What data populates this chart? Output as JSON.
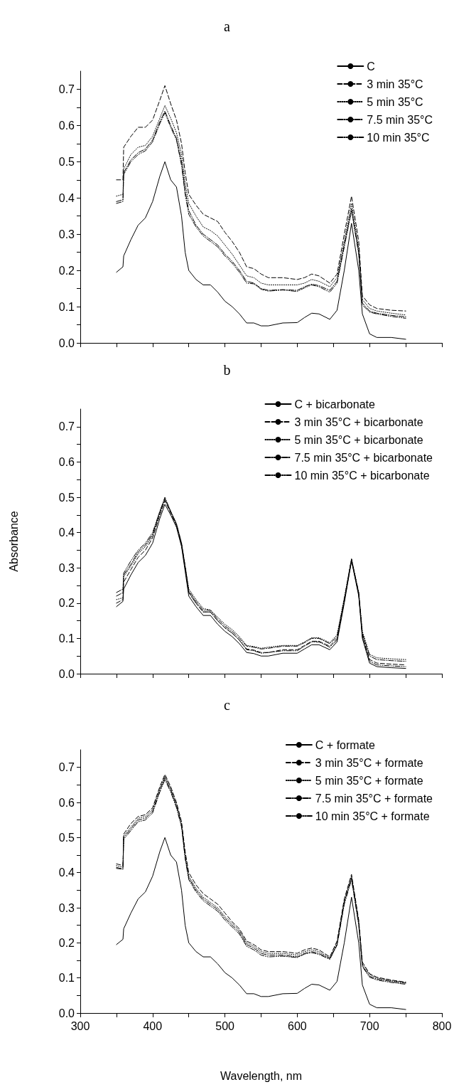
{
  "chart_data": [
    {
      "type": "line",
      "title": "a",
      "xlim": [
        300,
        800
      ],
      "ylim": [
        0,
        0.75
      ],
      "tick_labels": "y",
      "legend": "top right",
      "marker": "none",
      "xticks": [
        300,
        {
          "value": 350,
          "label": null
        },
        400,
        {
          "value": 450,
          "label": null
        },
        500,
        {
          "value": 550,
          "label": null
        },
        600,
        {
          "value": 650,
          "label": null
        },
        700,
        {
          "value": 750,
          "label": null
        },
        800
      ],
      "yticks": [
        {
          "value": 0,
          "label": "0.0"
        },
        {
          "value": 0.05,
          "label": null
        },
        {
          "value": 0.1,
          "label": "0.1"
        },
        {
          "value": 0.15,
          "label": null
        },
        {
          "value": 0.2,
          "label": "0.2"
        },
        {
          "value": 0.25,
          "label": null
        },
        {
          "value": 0.3,
          "label": "0.3"
        },
        {
          "value": 0.35,
          "label": null
        },
        {
          "value": 0.4,
          "label": "0.4"
        },
        {
          "value": 0.45,
          "label": null
        },
        {
          "value": 0.5,
          "label": "0.5"
        },
        {
          "value": 0.55,
          "label": null
        },
        {
          "value": 0.6,
          "label": "0.6"
        },
        {
          "value": 0.65,
          "label": null
        },
        {
          "value": 0.7,
          "label": "0.7"
        }
      ],
      "x": [
        350,
        359,
        360,
        370,
        380,
        390,
        400,
        410,
        417,
        425,
        433,
        440,
        445,
        450,
        460,
        470,
        480,
        490,
        500,
        510,
        520,
        530,
        540,
        550,
        560,
        580,
        600,
        610,
        620,
        630,
        645,
        655,
        665,
        675,
        685,
        690,
        700,
        710,
        730,
        750
      ],
      "series": [
        {
          "name": "C",
          "color": "#000000",
          "line_style": "solid",
          "values": [
            0.195,
            0.21,
            0.24,
            0.285,
            0.325,
            0.345,
            0.39,
            0.46,
            0.5,
            0.45,
            0.43,
            0.35,
            0.25,
            0.2,
            0.175,
            0.16,
            0.16,
            0.14,
            0.115,
            0.1,
            0.08,
            0.055,
            0.055,
            0.047,
            0.047,
            0.055,
            0.056,
            0.07,
            0.082,
            0.08,
            0.065,
            0.09,
            0.2,
            0.33,
            0.2,
            0.08,
            0.025,
            0.015,
            0.015,
            0.01
          ]
        },
        {
          "name": "3 min 35°C",
          "color": "#000000",
          "line_style": "dashed",
          "values": [
            0.45,
            0.45,
            0.54,
            0.57,
            0.595,
            0.595,
            0.615,
            0.67,
            0.71,
            0.66,
            0.615,
            0.55,
            0.47,
            0.41,
            0.38,
            0.355,
            0.345,
            0.335,
            0.305,
            0.28,
            0.25,
            0.21,
            0.205,
            0.19,
            0.18,
            0.18,
            0.175,
            0.18,
            0.19,
            0.185,
            0.165,
            0.19,
            0.3,
            0.405,
            0.28,
            0.13,
            0.105,
            0.095,
            0.09,
            0.088
          ]
        },
        {
          "name": "5 min 35°C",
          "color": "#000000",
          "line_style": "dotted",
          "values": [
            0.405,
            0.41,
            0.48,
            0.52,
            0.54,
            0.545,
            0.57,
            0.62,
            0.655,
            0.62,
            0.58,
            0.52,
            0.44,
            0.385,
            0.35,
            0.32,
            0.31,
            0.295,
            0.27,
            0.245,
            0.215,
            0.185,
            0.18,
            0.165,
            0.16,
            0.16,
            0.16,
            0.165,
            0.175,
            0.17,
            0.155,
            0.18,
            0.28,
            0.385,
            0.26,
            0.12,
            0.095,
            0.088,
            0.082,
            0.077
          ]
        },
        {
          "name": "7.5 min 35°C",
          "color": "#000000",
          "line_style": "dashdot",
          "values": [
            0.39,
            0.395,
            0.47,
            0.505,
            0.525,
            0.535,
            0.56,
            0.61,
            0.64,
            0.6,
            0.565,
            0.5,
            0.42,
            0.365,
            0.325,
            0.3,
            0.285,
            0.27,
            0.245,
            0.225,
            0.2,
            0.17,
            0.165,
            0.15,
            0.145,
            0.147,
            0.145,
            0.155,
            0.162,
            0.158,
            0.145,
            0.17,
            0.27,
            0.37,
            0.25,
            0.11,
            0.088,
            0.082,
            0.076,
            0.072
          ]
        },
        {
          "name": "10 min 35°C",
          "color": "#000000",
          "line_style": "dashdotdot",
          "values": [
            0.385,
            0.39,
            0.465,
            0.5,
            0.52,
            0.53,
            0.555,
            0.605,
            0.635,
            0.595,
            0.56,
            0.49,
            0.41,
            0.355,
            0.32,
            0.295,
            0.28,
            0.265,
            0.24,
            0.22,
            0.195,
            0.165,
            0.163,
            0.148,
            0.143,
            0.146,
            0.142,
            0.152,
            0.16,
            0.155,
            0.14,
            0.165,
            0.265,
            0.365,
            0.245,
            0.105,
            0.085,
            0.08,
            0.073,
            0.068
          ]
        }
      ]
    },
    {
      "type": "line",
      "title": "b",
      "ylabel": "Absorbance",
      "xlim": [
        300,
        800
      ],
      "ylim": [
        0,
        0.75
      ],
      "tick_labels": "y",
      "legend": "top right",
      "marker": "none",
      "xticks": [
        300,
        {
          "value": 350,
          "label": null
        },
        400,
        {
          "value": 450,
          "label": null
        },
        500,
        {
          "value": 550,
          "label": null
        },
        600,
        {
          "value": 650,
          "label": null
        },
        700,
        {
          "value": 750,
          "label": null
        },
        800
      ],
      "yticks": [
        {
          "value": 0,
          "label": "0.0"
        },
        {
          "value": 0.05,
          "label": null
        },
        {
          "value": 0.1,
          "label": "0.1"
        },
        {
          "value": 0.15,
          "label": null
        },
        {
          "value": 0.2,
          "label": "0.2"
        },
        {
          "value": 0.25,
          "label": null
        },
        {
          "value": 0.3,
          "label": "0.3"
        },
        {
          "value": 0.35,
          "label": null
        },
        {
          "value": 0.4,
          "label": "0.4"
        },
        {
          "value": 0.45,
          "label": null
        },
        {
          "value": 0.5,
          "label": "0.5"
        },
        {
          "value": 0.55,
          "label": null
        },
        {
          "value": 0.6,
          "label": "0.6"
        },
        {
          "value": 0.65,
          "label": null
        },
        {
          "value": 0.7,
          "label": "0.7"
        }
      ],
      "x": [
        350,
        359,
        360,
        370,
        380,
        390,
        400,
        410,
        417,
        425,
        433,
        440,
        445,
        450,
        460,
        470,
        480,
        490,
        500,
        510,
        520,
        530,
        540,
        550,
        560,
        580,
        600,
        610,
        620,
        630,
        645,
        655,
        665,
        675,
        685,
        690,
        700,
        710,
        730,
        750
      ],
      "series": [
        {
          "name": "C + bicarbonate",
          "color": "#000000",
          "line_style": "solid",
          "values": [
            0.19,
            0.205,
            0.24,
            0.28,
            0.315,
            0.335,
            0.37,
            0.44,
            0.48,
            0.45,
            0.415,
            0.36,
            0.29,
            0.22,
            0.19,
            0.165,
            0.165,
            0.14,
            0.12,
            0.105,
            0.085,
            0.06,
            0.057,
            0.05,
            0.05,
            0.058,
            0.058,
            0.07,
            0.082,
            0.082,
            0.068,
            0.09,
            0.2,
            0.32,
            0.22,
            0.1,
            0.03,
            0.02,
            0.017,
            0.015
          ]
        },
        {
          "name": "3 min 35°C + bicarbonate",
          "color": "#000000",
          "line_style": "dashed",
          "values": [
            0.2,
            0.21,
            0.26,
            0.295,
            0.33,
            0.35,
            0.385,
            0.45,
            0.49,
            0.455,
            0.42,
            0.365,
            0.3,
            0.23,
            0.2,
            0.175,
            0.175,
            0.15,
            0.13,
            0.115,
            0.095,
            0.07,
            0.067,
            0.06,
            0.06,
            0.068,
            0.068,
            0.08,
            0.092,
            0.092,
            0.078,
            0.1,
            0.21,
            0.325,
            0.225,
            0.11,
            0.04,
            0.03,
            0.027,
            0.025
          ]
        },
        {
          "name": "5 min 35°C + bicarbonate",
          "color": "#000000",
          "line_style": "dotted",
          "values": [
            0.21,
            0.215,
            0.275,
            0.305,
            0.34,
            0.36,
            0.39,
            0.455,
            0.495,
            0.46,
            0.425,
            0.37,
            0.305,
            0.24,
            0.21,
            0.185,
            0.18,
            0.16,
            0.14,
            0.125,
            0.105,
            0.08,
            0.077,
            0.072,
            0.075,
            0.08,
            0.08,
            0.09,
            0.102,
            0.102,
            0.088,
            0.11,
            0.215,
            0.325,
            0.23,
            0.12,
            0.055,
            0.045,
            0.042,
            0.04
          ]
        },
        {
          "name": "7.5 min 35°C + bicarbonate",
          "color": "#000000",
          "line_style": "dashdot",
          "values": [
            0.22,
            0.23,
            0.28,
            0.31,
            0.345,
            0.365,
            0.395,
            0.46,
            0.5,
            0.46,
            0.425,
            0.37,
            0.305,
            0.235,
            0.205,
            0.18,
            0.18,
            0.155,
            0.135,
            0.12,
            0.1,
            0.078,
            0.075,
            0.07,
            0.072,
            0.078,
            0.078,
            0.088,
            0.1,
            0.1,
            0.085,
            0.105,
            0.21,
            0.325,
            0.23,
            0.115,
            0.05,
            0.04,
            0.037,
            0.035
          ]
        },
        {
          "name": "10 min 35°C + bicarbonate",
          "color": "#000000",
          "line_style": "dashdotdot",
          "values": [
            0.23,
            0.24,
            0.285,
            0.32,
            0.35,
            0.37,
            0.4,
            0.46,
            0.495,
            0.46,
            0.42,
            0.365,
            0.3,
            0.23,
            0.2,
            0.175,
            0.175,
            0.15,
            0.13,
            0.115,
            0.095,
            0.068,
            0.065,
            0.058,
            0.06,
            0.065,
            0.065,
            0.078,
            0.09,
            0.09,
            0.075,
            0.095,
            0.205,
            0.32,
            0.225,
            0.105,
            0.035,
            0.025,
            0.022,
            0.02
          ]
        }
      ]
    },
    {
      "type": "line",
      "title": "c",
      "xlabel": "Wavelength, nm",
      "xlim": [
        300,
        800
      ],
      "ylim": [
        0,
        0.75
      ],
      "legend": "top right",
      "marker": "none",
      "xticks": [
        300,
        {
          "value": 350,
          "label": null
        },
        400,
        {
          "value": 450,
          "label": null
        },
        500,
        {
          "value": 550,
          "label": null
        },
        600,
        {
          "value": 650,
          "label": null
        },
        700,
        {
          "value": 750,
          "label": null
        },
        800
      ],
      "yticks": [
        {
          "value": 0,
          "label": "0.0"
        },
        {
          "value": 0.05,
          "label": null
        },
        {
          "value": 0.1,
          "label": "0.1"
        },
        {
          "value": 0.15,
          "label": null
        },
        {
          "value": 0.2,
          "label": "0.2"
        },
        {
          "value": 0.25,
          "label": null
        },
        {
          "value": 0.3,
          "label": "0.3"
        },
        {
          "value": 0.35,
          "label": null
        },
        {
          "value": 0.4,
          "label": "0.4"
        },
        {
          "value": 0.45,
          "label": null
        },
        {
          "value": 0.5,
          "label": "0.5"
        },
        {
          "value": 0.55,
          "label": null
        },
        {
          "value": 0.6,
          "label": "0.6"
        },
        {
          "value": 0.65,
          "label": null
        },
        {
          "value": 0.7,
          "label": "0.7"
        }
      ],
      "x": [
        350,
        359,
        360,
        370,
        380,
        390,
        400,
        410,
        417,
        425,
        433,
        440,
        445,
        450,
        460,
        470,
        480,
        490,
        500,
        510,
        520,
        530,
        540,
        550,
        560,
        580,
        600,
        610,
        620,
        630,
        645,
        655,
        665,
        675,
        685,
        690,
        700,
        710,
        730,
        750
      ],
      "series": [
        {
          "name": "C + formate",
          "color": "#000000",
          "line_style": "solid",
          "values": [
            0.195,
            0.21,
            0.24,
            0.285,
            0.325,
            0.345,
            0.39,
            0.46,
            0.5,
            0.45,
            0.43,
            0.35,
            0.25,
            0.2,
            0.175,
            0.16,
            0.16,
            0.14,
            0.115,
            0.1,
            0.08,
            0.055,
            0.055,
            0.047,
            0.047,
            0.055,
            0.056,
            0.07,
            0.082,
            0.08,
            0.065,
            0.09,
            0.2,
            0.33,
            0.2,
            0.08,
            0.025,
            0.015,
            0.015,
            0.01
          ]
        },
        {
          "name": "3 min 35°C + formate",
          "color": "#000000",
          "line_style": "dashed",
          "values": [
            0.425,
            0.42,
            0.51,
            0.54,
            0.56,
            0.565,
            0.585,
            0.645,
            0.68,
            0.645,
            0.6,
            0.545,
            0.46,
            0.4,
            0.365,
            0.34,
            0.325,
            0.31,
            0.285,
            0.26,
            0.24,
            0.205,
            0.195,
            0.18,
            0.175,
            0.175,
            0.17,
            0.18,
            0.185,
            0.18,
            0.16,
            0.205,
            0.325,
            0.395,
            0.265,
            0.145,
            0.112,
            0.102,
            0.094,
            0.088
          ]
        },
        {
          "name": "5 min 35°C + formate",
          "color": "#000000",
          "line_style": "dotted",
          "values": [
            0.42,
            0.415,
            0.505,
            0.53,
            0.555,
            0.56,
            0.58,
            0.64,
            0.675,
            0.64,
            0.595,
            0.54,
            0.45,
            0.39,
            0.355,
            0.33,
            0.315,
            0.3,
            0.275,
            0.255,
            0.235,
            0.2,
            0.19,
            0.175,
            0.17,
            0.17,
            0.165,
            0.175,
            0.18,
            0.175,
            0.157,
            0.2,
            0.32,
            0.39,
            0.26,
            0.14,
            0.11,
            0.1,
            0.092,
            0.087
          ]
        },
        {
          "name": "7.5 min 35°C + formate",
          "color": "#000000",
          "line_style": "dashdot",
          "values": [
            0.415,
            0.41,
            0.5,
            0.525,
            0.55,
            0.555,
            0.575,
            0.635,
            0.67,
            0.635,
            0.59,
            0.535,
            0.445,
            0.385,
            0.35,
            0.325,
            0.31,
            0.295,
            0.27,
            0.25,
            0.23,
            0.195,
            0.185,
            0.17,
            0.165,
            0.165,
            0.16,
            0.17,
            0.175,
            0.17,
            0.155,
            0.195,
            0.315,
            0.385,
            0.255,
            0.135,
            0.105,
            0.097,
            0.09,
            0.085
          ]
        },
        {
          "name": "10 min 35°C + formate",
          "color": "#000000",
          "line_style": "dashdotdot",
          "values": [
            0.412,
            0.41,
            0.495,
            0.52,
            0.545,
            0.55,
            0.57,
            0.63,
            0.665,
            0.63,
            0.585,
            0.53,
            0.44,
            0.38,
            0.345,
            0.32,
            0.305,
            0.29,
            0.265,
            0.245,
            0.225,
            0.19,
            0.18,
            0.165,
            0.16,
            0.162,
            0.158,
            0.168,
            0.172,
            0.167,
            0.153,
            0.193,
            0.31,
            0.38,
            0.25,
            0.132,
            0.102,
            0.094,
            0.087,
            0.082
          ]
        }
      ]
    }
  ]
}
